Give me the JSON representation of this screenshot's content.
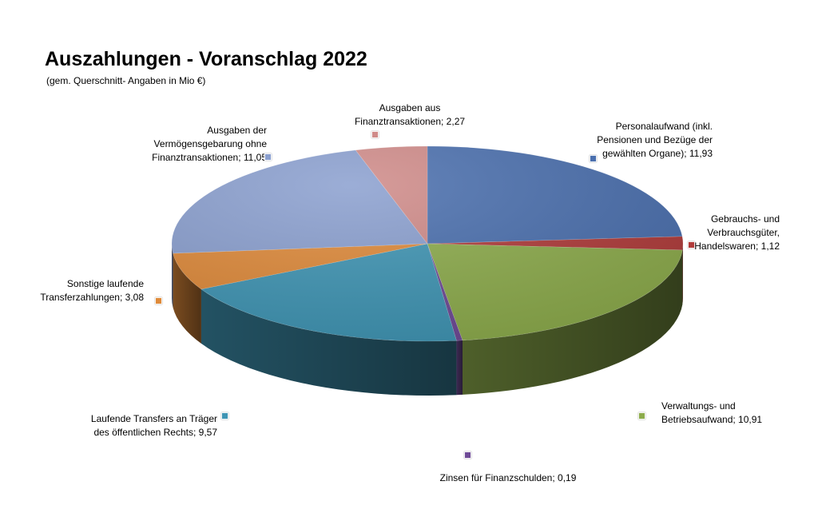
{
  "chart_data": {
    "type": "pie",
    "title": "Auszahlungen - Voranschlag 2022",
    "subtitle": "(gem. Querschnitt- Angaben in Mio €)",
    "slices": [
      {
        "label": "Personalaufwand (inkl. Pensionen und Bezüge der gewählten Organe); 11,93",
        "label_lines": [
          "Personalaufwand (inkl.",
          "Pensionen und Bezüge der",
          "gewählten Organe); 11,93"
        ],
        "value": 11.93,
        "color": "#4a6fae"
      },
      {
        "label": "Gebrauchs- und Verbrauchsgüter, Handelswaren; 1,12",
        "label_lines": [
          "Gebrauchs- und",
          "Verbrauchsgüter,",
          "Handelswaren; 1,12"
        ],
        "value": 1.12,
        "color": "#b03b3a"
      },
      {
        "label": "Verwaltungs- und Betriebsaufwand; 10,91",
        "label_lines": [
          "Verwaltungs- und",
          "Betriebsaufwand; 10,91"
        ],
        "value": 10.91,
        "color": "#8dac4c"
      },
      {
        "label": "Zinsen für Finanzschulden; 0,19",
        "label_lines": [
          "Zinsen für Finanzschulden; 0,19"
        ],
        "value": 0.19,
        "color": "#6e4a96"
      },
      {
        "label": "Laufende Transfers an Träger des öffentlichen Rechts; 9,57",
        "label_lines": [
          "Laufende Transfers an Träger",
          "des öffentlichen Rechts; 9,57"
        ],
        "value": 9.57,
        "color": "#3f95b4"
      },
      {
        "label": "Sonstige laufende Transferzahlungen; 3,08",
        "label_lines": [
          "Sonstige laufende",
          "Transferzahlungen; 3,08"
        ],
        "value": 3.08,
        "color": "#df8a3a"
      },
      {
        "label": "Ausgaben der Vermögensgebarung ohne Finanztransaktionen; 11,05",
        "label_lines": [
          "Ausgaben der",
          "Vermögensgebarung ohne",
          "Finanztransaktionen; 11,05"
        ],
        "value": 11.05,
        "color": "#8a9fcf"
      },
      {
        "label": "Ausgaben aus Finanztransaktionen; 2,27",
        "label_lines": [
          "Ausgaben aus",
          "Finanztransaktionen; 2,27"
        ],
        "value": 2.27,
        "color": "#cf8a88"
      }
    ],
    "legend": "none",
    "style": "3d"
  }
}
